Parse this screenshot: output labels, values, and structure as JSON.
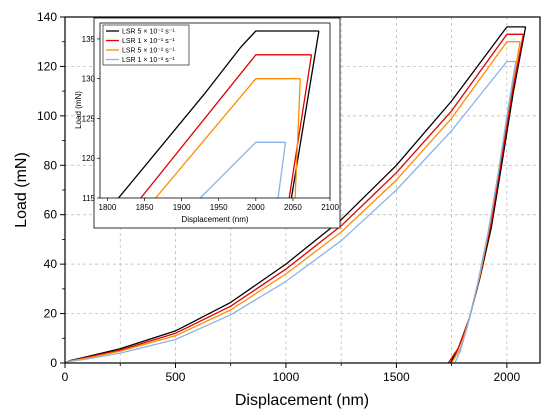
{
  "chart_data": [
    {
      "type": "line",
      "xlabel": "Displacement (nm)",
      "ylabel": "Load (mN)",
      "xlim": [
        0,
        2150
      ],
      "ylim": [
        0,
        140
      ],
      "xticks": [
        0,
        500,
        1000,
        1500,
        2000
      ],
      "yticks": [
        0,
        20,
        40,
        60,
        80,
        100,
        120,
        140
      ],
      "grid": "dashed vertical and horizontal lines",
      "series": [
        {
          "name": "LSR 5 × 10⁻¹ s⁻¹",
          "color": "#000000",
          "loading": [
            [
              0,
              0
            ],
            [
              25,
              1
            ],
            [
              100,
              2.6
            ],
            [
              250,
              5.8
            ],
            [
              500,
              13
            ],
            [
              750,
              24.5
            ],
            [
              1000,
              40
            ],
            [
              1250,
              58
            ],
            [
              1500,
              80
            ],
            [
              1750,
              106
            ],
            [
              2000,
              136
            ]
          ],
          "hold": [
            [
              2000,
              136
            ],
            [
              2085,
              136
            ]
          ],
          "unloading": [
            [
              2085,
              136
            ],
            [
              2030,
              110
            ],
            [
              1980,
              82
            ],
            [
              1930,
              55
            ],
            [
              1880,
              35
            ],
            [
              1830,
              18
            ],
            [
              1780,
              6
            ],
            [
              1745,
              0
            ]
          ]
        },
        {
          "name": "LSR 1 × 10⁻¹ s⁻¹",
          "color": "#e00000",
          "loading": [
            [
              0,
              0
            ],
            [
              25,
              0.9
            ],
            [
              100,
              2.3
            ],
            [
              250,
              5.2
            ],
            [
              500,
              12
            ],
            [
              750,
              23
            ],
            [
              1000,
              38
            ],
            [
              1250,
              55.5
            ],
            [
              1500,
              77
            ],
            [
              1750,
              102
            ],
            [
              2000,
              133
            ]
          ],
          "hold": [
            [
              2000,
              133
            ],
            [
              2075,
              133
            ]
          ],
          "unloading": [
            [
              2075,
              133
            ],
            [
              2025,
              110
            ],
            [
              1975,
              82
            ],
            [
              1930,
              57
            ],
            [
              1880,
              36
            ],
            [
              1830,
              18
            ],
            [
              1780,
              6
            ],
            [
              1735,
              0
            ]
          ]
        },
        {
          "name": "LSR 5 × 10⁻² s⁻¹",
          "color": "#ff8c00",
          "loading": [
            [
              0,
              0
            ],
            [
              25,
              0.8
            ],
            [
              100,
              2
            ],
            [
              250,
              4.8
            ],
            [
              500,
              11
            ],
            [
              750,
              21.5
            ],
            [
              1000,
              36
            ],
            [
              1250,
              53
            ],
            [
              1500,
              74
            ],
            [
              1750,
              99
            ],
            [
              2000,
              130
            ]
          ],
          "hold": [
            [
              2000,
              130
            ],
            [
              2060,
              130
            ]
          ],
          "unloading": [
            [
              2060,
              130
            ],
            [
              2020,
              110
            ],
            [
              1970,
              82
            ],
            [
              1925,
              57
            ],
            [
              1880,
              36
            ],
            [
              1830,
              18
            ],
            [
              1790,
              6
            ],
            [
              1750,
              0
            ]
          ]
        },
        {
          "name": "LSR 1 × 10⁻² s⁻¹",
          "color": "#8ab4e8",
          "loading": [
            [
              0,
              0
            ],
            [
              25,
              0.7
            ],
            [
              100,
              1.6
            ],
            [
              250,
              4
            ],
            [
              500,
              9.5
            ],
            [
              750,
              19.5
            ],
            [
              1000,
              33
            ],
            [
              1250,
              49.5
            ],
            [
              1500,
              70
            ],
            [
              1750,
              94
            ],
            [
              2000,
              122
            ]
          ],
          "hold": [
            [
              2000,
              122
            ],
            [
              2040,
              122
            ]
          ],
          "unloading": [
            [
              2040,
              122
            ],
            [
              2000,
              100
            ],
            [
              1960,
              76
            ],
            [
              1915,
              53
            ],
            [
              1870,
              33
            ],
            [
              1825,
              16
            ],
            [
              1790,
              5
            ],
            [
              1765,
              0
            ]
          ]
        }
      ]
    },
    {
      "type": "line",
      "xlabel": "Displacement (nm)",
      "ylabel": "Load (mN)",
      "xlim": [
        1790,
        2100
      ],
      "ylim": [
        115,
        137
      ],
      "xticks": [
        1800,
        1850,
        1900,
        1950,
        2000,
        2050,
        2100
      ],
      "yticks": [
        115,
        120,
        125,
        130,
        135
      ],
      "legend": "top-left",
      "series": [
        {
          "name": "LSR 5 × 10⁻¹ s⁻¹",
          "color": "#000000",
          "segments": [
            [
              [
                1815,
                115
              ],
              [
                1930,
                128
              ],
              [
                1980,
                134
              ],
              [
                2000,
                136
              ],
              [
                2085,
                136
              ]
            ],
            [
              [
                2085,
                136
              ],
              [
                2048,
                115
              ]
            ]
          ]
        },
        {
          "name": "LSR 1 × 10⁻¹ s⁻¹",
          "color": "#e00000",
          "segments": [
            [
              [
                1845,
                115
              ],
              [
                2000,
                133
              ],
              [
                2075,
                133
              ]
            ],
            [
              [
                2075,
                133
              ],
              [
                2045,
                115
              ]
            ]
          ]
        },
        {
          "name": "LSR 5 × 10⁻² s⁻¹",
          "color": "#ff8c00",
          "segments": [
            [
              [
                1865,
                115
              ],
              [
                2000,
                130
              ],
              [
                2060,
                130
              ]
            ],
            [
              [
                2060,
                130
              ],
              [
                2053,
                115
              ]
            ]
          ]
        },
        {
          "name": "LSR 1 × 10⁻² s⁻¹",
          "color": "#8ab4e8",
          "segments": [
            [
              [
                1925,
                115
              ],
              [
                2000,
                122
              ],
              [
                2040,
                122
              ]
            ],
            [
              [
                2040,
                122
              ],
              [
                2030,
                115
              ]
            ]
          ]
        }
      ]
    }
  ]
}
